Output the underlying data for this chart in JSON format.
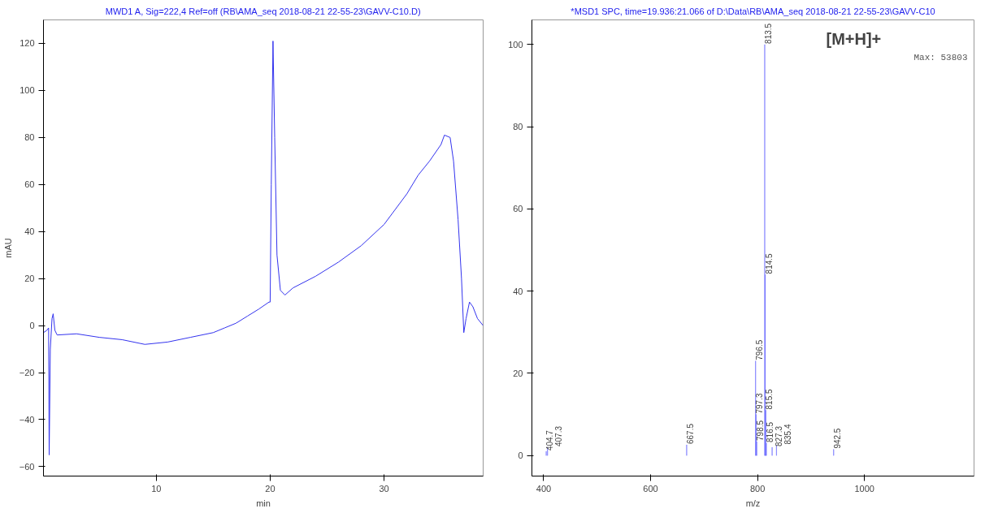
{
  "chart_data": [
    {
      "type": "line",
      "title": "MWD1 A, Sig=222,4 Ref=off (RB\\AMA_seq 2018-08-21 22-55-23\\GAVV-C10.D)",
      "xlabel": "min",
      "ylabel": "mAU",
      "series": [
        {
          "color": "#3333ee",
          "x": [
            0.1,
            0.4,
            0.55,
            0.6,
            0.7,
            0.85,
            0.95,
            1.1,
            1.3,
            3,
            5,
            7,
            9,
            11,
            13,
            15,
            16,
            17,
            18,
            19,
            19.9,
            20.0,
            20.1,
            20.25,
            20.4,
            20.6,
            20.9,
            21.3,
            22,
            24,
            26,
            28,
            30,
            32,
            33,
            34,
            35,
            35.3,
            35.8,
            36.1,
            36.5,
            36.8,
            37.0,
            37.2,
            37.5,
            37.8,
            38.2,
            38.7
          ],
          "values": [
            -3,
            -2,
            -1,
            -55,
            -10,
            3,
            5,
            -2,
            -4,
            -3.5,
            -5,
            -6,
            -8,
            -7,
            -5,
            -3,
            -1,
            1,
            4,
            7,
            10,
            10,
            60,
            121,
            80,
            30,
            15,
            13,
            16,
            21,
            27,
            34,
            43,
            56,
            64,
            70,
            77,
            81,
            80,
            70,
            45,
            20,
            -3,
            3,
            10,
            8,
            3,
            0
          ]
        }
      ],
      "xlim": [
        0.1,
        38.7
      ],
      "ylim": [
        -64,
        130
      ],
      "xticks": [
        10,
        20,
        30
      ],
      "yticks": [
        -60,
        -40,
        -20,
        0,
        20,
        40,
        60,
        80,
        100,
        120
      ],
      "grid": false
    },
    {
      "type": "bar",
      "title": "*MSD1 SPC, time=19.936:21.066 of D:\\Data\\RB\\AMA_seq 2018-08-21 22-55-23\\GAVV-C10",
      "xlabel": "m/z",
      "x": [
        404.7,
        407.3,
        667.5,
        796.5,
        797.3,
        798.5,
        813.5,
        814.5,
        815.5,
        816.5,
        827.3,
        835.4,
        942.5
      ],
      "values": [
        1,
        2,
        2.6,
        23,
        10,
        3.4,
        100,
        44,
        11,
        3,
        2,
        2.5,
        1.5
      ],
      "color": "#6666ff",
      "annotations": [
        {
          "text": "404.7",
          "x": 404.7,
          "y": 1
        },
        {
          "text": "407.3",
          "x": 407.3,
          "y": 2
        },
        {
          "text": "667.5",
          "x": 667.5,
          "y": 2.6
        },
        {
          "text": "796.5",
          "x": 796.5,
          "y": 23
        },
        {
          "text": "797.3",
          "x": 797.3,
          "y": 10
        },
        {
          "text": "798.5",
          "x": 798.5,
          "y": 3.4
        },
        {
          "text": "813.5",
          "x": 813.5,
          "y": 100
        },
        {
          "text": "814.5",
          "x": 814.5,
          "y": 44
        },
        {
          "text": "815.5",
          "x": 815.5,
          "y": 11
        },
        {
          "text": "816.5",
          "x": 816.5,
          "y": 3
        },
        {
          "text": "827.3",
          "x": 827.3,
          "y": 2
        },
        {
          "text": "835.4",
          "x": 835.4,
          "y": 2.5
        },
        {
          "text": "942.5",
          "x": 942.5,
          "y": 1.5
        },
        "[M+H]+",
        "Max: 53803"
      ],
      "xlim": [
        378,
        1205
      ],
      "ylim": [
        -5,
        106
      ],
      "xticks": [
        400,
        600,
        800,
        1000
      ],
      "yticks": [
        0,
        20,
        40,
        60,
        80,
        100
      ],
      "grid": false
    }
  ]
}
